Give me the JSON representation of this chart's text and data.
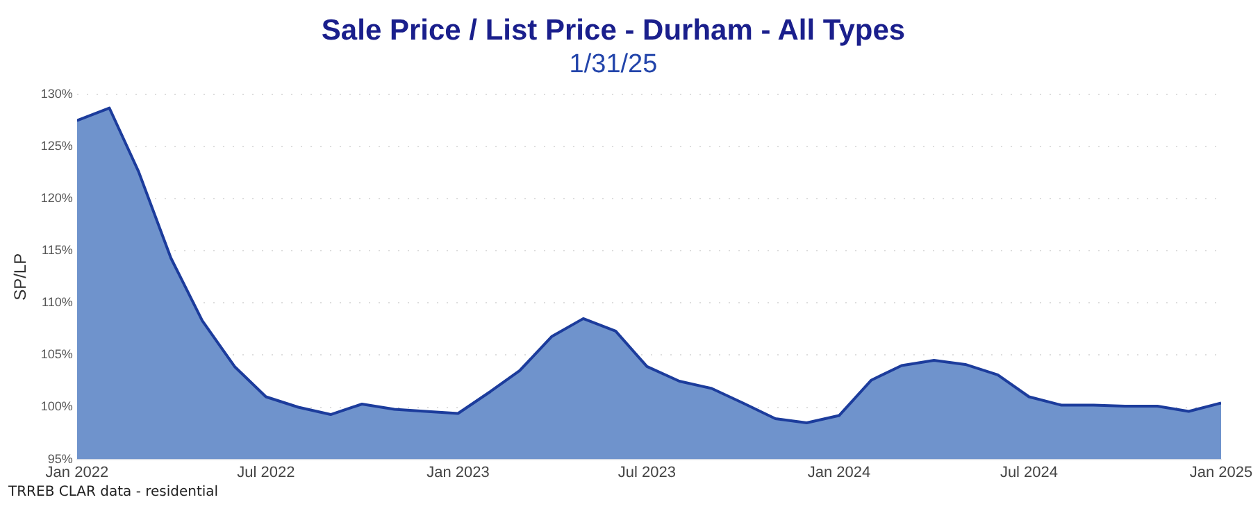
{
  "chart_data": {
    "type": "area",
    "title": "Sale Price / List Price - Durham - All Types",
    "subtitle": "1/31/25",
    "ylabel": "SP/LP",
    "annotations": [
      "TRREB CLAR data - residential"
    ],
    "x": [
      "2022-01",
      "2022-02",
      "2022-03",
      "2022-04",
      "2022-05",
      "2022-06",
      "2022-07",
      "2022-08",
      "2022-09",
      "2022-10",
      "2022-11",
      "2022-12",
      "2023-01",
      "2023-02",
      "2023-03",
      "2023-04",
      "2023-05",
      "2023-06",
      "2023-07",
      "2023-08",
      "2023-09",
      "2023-10",
      "2023-11",
      "2023-12",
      "2024-01",
      "2024-02",
      "2024-03",
      "2024-04",
      "2024-05",
      "2024-06",
      "2024-07",
      "2024-08",
      "2024-09",
      "2024-10",
      "2024-11",
      "2024-12",
      "2025-01"
    ],
    "series": [
      {
        "color": "#6f93cc",
        "values": [
          127.5,
          128.7,
          122.6,
          114.3,
          108.3,
          103.9,
          101.0,
          100.0,
          99.3,
          100.3,
          99.8,
          99.6,
          99.4,
          101.5,
          103.5,
          106.8,
          108.5,
          107.3,
          103.9,
          102.5,
          101.8,
          100.4,
          98.9,
          98.5,
          99.2,
          102.6,
          104.0,
          104.5,
          104.1,
          103.1,
          101.0,
          100.2,
          100.2,
          100.1,
          100.1,
          99.6,
          100.4
        ]
      }
    ],
    "xlim": [
      "2022-01",
      "2025-01"
    ],
    "xticks": [
      {
        "value": "2022-01",
        "label": "Jan 2022"
      },
      {
        "value": "2022-07",
        "label": "Jul 2022"
      },
      {
        "value": "2023-01",
        "label": "Jan 2023"
      },
      {
        "value": "2023-07",
        "label": "Jul 2023"
      },
      {
        "value": "2024-01",
        "label": "Jan 2024"
      },
      {
        "value": "2024-07",
        "label": "Jul 2024"
      },
      {
        "value": "2025-01",
        "label": "Jan 2025"
      }
    ],
    "ylim": [
      95,
      130
    ],
    "yticks": [
      {
        "value": 95,
        "label": "95%"
      },
      {
        "value": 100,
        "label": "100%"
      },
      {
        "value": 105,
        "label": "105%"
      },
      {
        "value": 110,
        "label": "110%"
      },
      {
        "value": 115,
        "label": "115%"
      },
      {
        "value": 120,
        "label": "120%"
      },
      {
        "value": 125,
        "label": "125%"
      },
      {
        "value": 130,
        "label": "130%"
      }
    ],
    "grid": "y",
    "legend": false
  }
}
